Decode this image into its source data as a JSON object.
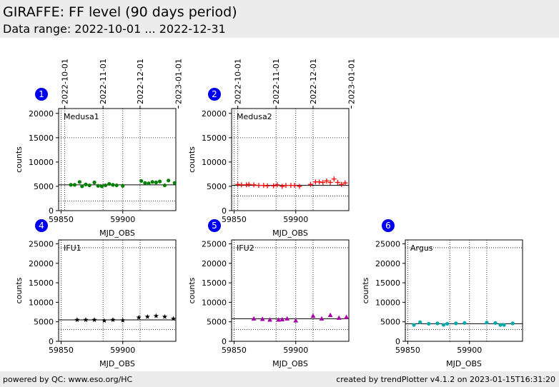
{
  "header": {
    "title": "GIRAFFE: FF level (90 days period)",
    "subtitle": "Data range: 2022-10-01 ... 2022-12-31"
  },
  "footer": {
    "left": "powered by QC: www.eso.org/HC",
    "right": "created by trendPlotter v4.1.2 on 2023-01-15T16:31:20"
  },
  "colors": {
    "panel_bg": "#ececec",
    "badge": "#0000ee",
    "medusa1": "#008000",
    "medusa2": "#ff0000",
    "ifu1": "#000000",
    "ifu2": "#aa00aa",
    "argus": "#00aaaa"
  },
  "chart_data": [
    {
      "type": "scatter",
      "badge": "1",
      "label": "Medusa1",
      "marker": "circle",
      "color": "#008000",
      "xlabel": "MJD_OBS",
      "ylabel": "counts",
      "xlim": [
        59848,
        59943
      ],
      "ylim": [
        0,
        21000
      ],
      "xticks": [
        59850,
        59900
      ],
      "yticks": [
        0,
        5000,
        10000,
        15000,
        20000
      ],
      "date_ticks": [
        {
          "label": "2022-10-01",
          "mjd": 59853
        },
        {
          "label": "2022-11-01",
          "mjd": 59884
        },
        {
          "label": "2022-12-01",
          "mjd": 59914
        },
        {
          "label": "2023-01-01",
          "mjd": 59945
        }
      ],
      "ref_lines": {
        "solid": 5300,
        "dotted": [
          2000,
          15000
        ]
      },
      "x": [
        59858,
        59861,
        59865,
        59867,
        59870,
        59873,
        59877,
        59880,
        59883,
        59886,
        59889,
        59892,
        59895,
        59900,
        59915,
        59918,
        59921,
        59924,
        59927,
        59930,
        59934,
        59937,
        59942
      ],
      "y": [
        5300,
        5300,
        5900,
        5000,
        5400,
        5200,
        5800,
        5100,
        5000,
        5200,
        5500,
        5300,
        5200,
        5100,
        6100,
        5700,
        5600,
        5900,
        5800,
        6000,
        5200,
        6200,
        5700
      ]
    },
    {
      "type": "scatter",
      "badge": "2",
      "label": "Medusa2",
      "marker": "plus",
      "color": "#ff0000",
      "xlabel": "MJD_OBS",
      "ylabel": "counts",
      "xlim": [
        59848,
        59943
      ],
      "ylim": [
        0,
        21000
      ],
      "xticks": [
        59850,
        59900
      ],
      "yticks": [
        0,
        5000,
        10000,
        15000,
        20000
      ],
      "date_ticks": [
        {
          "label": "2022-10-01",
          "mjd": 59853
        },
        {
          "label": "2022-11-01",
          "mjd": 59884
        },
        {
          "label": "2022-12-01",
          "mjd": 59914
        },
        {
          "label": "2023-01-01",
          "mjd": 59945
        }
      ],
      "ref_lines": {
        "solid": 5200,
        "dotted": [
          3000,
          15000
        ]
      },
      "x": [
        59853,
        59856,
        59860,
        59862,
        59866,
        59870,
        59874,
        59877,
        59882,
        59885,
        59889,
        59892,
        59896,
        59899,
        59903,
        59912,
        59916,
        59919,
        59922,
        59925,
        59928,
        59931,
        59934,
        59937,
        59940
      ],
      "y": [
        5400,
        5300,
        5300,
        5400,
        5300,
        5200,
        5200,
        5100,
        5100,
        5300,
        5000,
        5200,
        5200,
        5200,
        5000,
        5400,
        5900,
        5900,
        5800,
        6100,
        5800,
        6500,
        5800,
        5400,
        5700
      ]
    },
    {
      "type": "scatter",
      "badge": "4",
      "label": "IFU1",
      "marker": "star",
      "color": "#000000",
      "xlabel": "MJD_OBS",
      "ylabel": "counts",
      "xlim": [
        59848,
        59943
      ],
      "ylim": [
        0,
        26000
      ],
      "xticks": [
        59850,
        59900
      ],
      "yticks": [
        0,
        5000,
        10000,
        15000,
        20000,
        25000
      ],
      "date_ticks": [],
      "ref_lines": {
        "solid": 5500,
        "dotted": [
          3000,
          24000
        ]
      },
      "x": [
        59863,
        59870,
        59877,
        59885,
        59892,
        59900,
        59913,
        59920,
        59927,
        59934,
        59941
      ],
      "y": [
        5500,
        5500,
        5500,
        5300,
        5500,
        5400,
        6100,
        6300,
        6500,
        6300,
        5800
      ]
    },
    {
      "type": "scatter",
      "badge": "5",
      "label": "IFU2",
      "marker": "triangle",
      "color": "#aa00aa",
      "xlabel": "MJD_OBS",
      "ylabel": "counts",
      "xlim": [
        59848,
        59943
      ],
      "ylim": [
        0,
        26000
      ],
      "xticks": [
        59850,
        59900
      ],
      "yticks": [
        0,
        5000,
        10000,
        15000,
        20000,
        25000
      ],
      "date_ticks": [],
      "ref_lines": {
        "solid": 5800,
        "dotted": [
          3000,
          24000
        ]
      },
      "x": [
        59866,
        59873,
        59879,
        59886,
        59889,
        59893,
        59900,
        59914,
        59921,
        59928,
        59935,
        59941
      ],
      "y": [
        5800,
        5700,
        5500,
        5500,
        5600,
        5800,
        5300,
        6500,
        5800,
        6700,
        6000,
        6200
      ]
    },
    {
      "type": "scatter",
      "badge": "6",
      "label": "Argus",
      "marker": "circle",
      "color": "#00aaaa",
      "xlabel": "MJD_OBS",
      "ylabel": "counts",
      "xlim": [
        59848,
        59943
      ],
      "ylim": [
        0,
        26000
      ],
      "xticks": [
        59850,
        59900
      ],
      "yticks": [
        0,
        5000,
        10000,
        15000,
        20000,
        25000
      ],
      "date_ticks": [],
      "ref_lines": {
        "solid": 4500,
        "dotted": [
          3000,
          24000
        ]
      },
      "x": [
        59855,
        59860,
        59867,
        59874,
        59879,
        59882,
        59889,
        59896,
        59914,
        59921,
        59925,
        59928,
        59935
      ],
      "y": [
        4200,
        4900,
        4500,
        4600,
        4200,
        4500,
        4600,
        4700,
        4800,
        4700,
        4200,
        4200,
        4600
      ]
    }
  ]
}
